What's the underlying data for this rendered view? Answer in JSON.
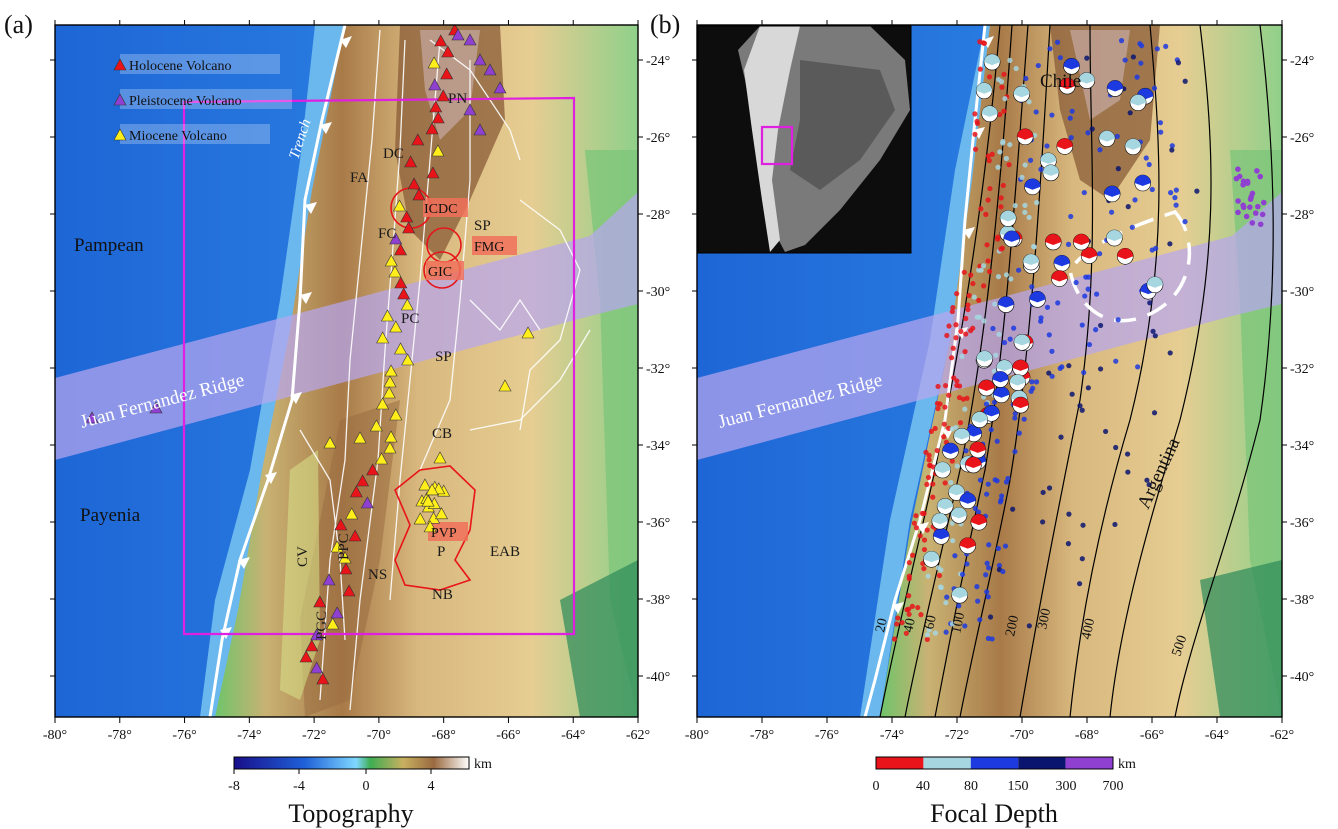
{
  "panels": [
    {
      "id": "a",
      "label": "(a)",
      "x_ticks": [
        "-80°",
        "-78°",
        "-76°",
        "-74°",
        "-72°",
        "-70°",
        "-68°",
        "-66°",
        "-64°",
        "-62°"
      ],
      "y_ticks": [
        "-24°",
        "-26°",
        "-28°",
        "-30°",
        "-32°",
        "-34°",
        "-36°",
        "-38°",
        "-40°"
      ],
      "legend": [
        {
          "label": "Holocene Volcano",
          "color": "#e8141a"
        },
        {
          "label": "Pleistocene Volcano",
          "color": "#9040d0"
        },
        {
          "label": "Miocene Volcano",
          "color": "#ffee1a"
        }
      ],
      "regions": {
        "pampean": "Pampean",
        "payenia": "Payenia",
        "trench": "Trench",
        "ridge": "Juan Fernandez Ridge",
        "pn": "PN",
        "dc": "DC",
        "fa": "FA",
        "fc": "FC",
        "sp1": "SP",
        "pc": "PC",
        "sp2": "SP",
        "cb": "CB",
        "cv": "CV",
        "ppc": "PPC",
        "ns": "NS",
        "p": "P",
        "eab": "EAB",
        "nb": "NB",
        "pgc": "PGC",
        "icdc": "ICDC",
        "fmg": "FMG",
        "gic": "GIC",
        "pvp": "PVP"
      },
      "colorbar": {
        "title": "Topography",
        "unit": "km",
        "ticks": [
          "-8",
          "-4",
          "0",
          "4"
        ]
      }
    },
    {
      "id": "b",
      "label": "(b)",
      "x_ticks": [
        "-80°",
        "-78°",
        "-76°",
        "-74°",
        "-72°",
        "-70°",
        "-68°",
        "-66°",
        "-64°",
        "-62°"
      ],
      "y_ticks": [
        "-24°",
        "-26°",
        "-28°",
        "-30°",
        "-32°",
        "-34°",
        "-36°",
        "-38°",
        "-40°"
      ],
      "regions": {
        "chile": "Chile",
        "argentina": "Argentina",
        "ridge": "Juan Fernandez Ridge"
      },
      "contours": [
        "20",
        "40",
        "60",
        "100",
        "200",
        "300",
        "400",
        "500"
      ],
      "colorbar": {
        "title": "Focal Depth",
        "unit": "km",
        "ticks": [
          "0",
          "40",
          "80",
          "150",
          "300",
          "700"
        ],
        "colors": [
          "#e8141a",
          "#a6d6e0",
          "#1c3ae0",
          "#0a1570",
          "#9040d0"
        ]
      }
    }
  ],
  "colors": {
    "holocene": "#e8141a",
    "pleistocene": "#9040d0",
    "miocene": "#ffee1a",
    "study_box": "#e020e0",
    "ridge": "#b7a6ee"
  }
}
